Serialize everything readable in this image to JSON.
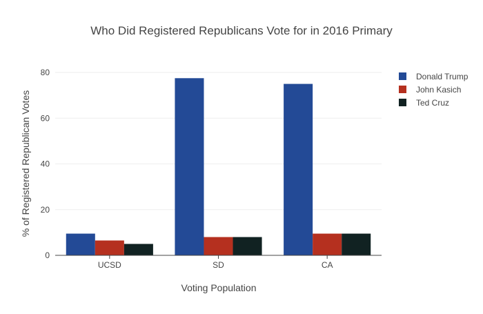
{
  "chart_data": {
    "type": "bar",
    "title": "Who Did Registered Republicans Vote for in 2016 Primary",
    "xlabel": "Voting Population",
    "ylabel": "% of Registered Republican Votes",
    "categories": [
      "UCSD",
      "SD",
      "CA"
    ],
    "ylim": [
      0,
      80
    ],
    "yticks": [
      0,
      20,
      40,
      60,
      80
    ],
    "grid": true,
    "legend_position": "top-right",
    "series": [
      {
        "name": "Donald Trump",
        "color": "#234a96",
        "values": [
          9.5,
          77.5,
          75
        ]
      },
      {
        "name": "John Kasich",
        "color": "#b5301f",
        "values": [
          6.5,
          8,
          9.5
        ]
      },
      {
        "name": "Ted Cruz",
        "color": "#112222",
        "values": [
          5,
          8,
          9.5
        ]
      }
    ]
  }
}
